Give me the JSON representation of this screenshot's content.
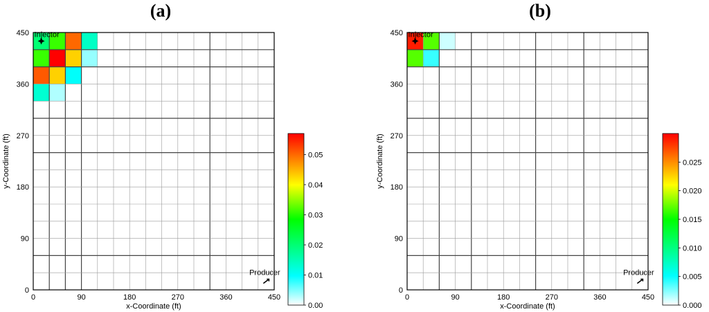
{
  "chart_data": [
    {
      "type": "heatmap",
      "panel_label": "(a)",
      "title": "",
      "xlabel": "x-Coordinate (ft)",
      "ylabel": "y-Coordinate (ft)",
      "xlim": [
        0,
        450
      ],
      "ylim": [
        0,
        450
      ],
      "x_ticks": [
        0,
        90,
        180,
        270,
        360,
        450
      ],
      "y_ticks": [
        0,
        90,
        180,
        270,
        360,
        450
      ],
      "grid_x_edges": [
        0,
        30,
        60,
        90,
        120,
        150,
        180,
        210,
        240,
        270,
        300,
        330,
        360,
        390,
        420,
        450
      ],
      "grid_y_edges": [
        0,
        30,
        60,
        90,
        120,
        150,
        180,
        210,
        240,
        270,
        300,
        330,
        360,
        390,
        420,
        450
      ],
      "heavy_x_lines": [
        30,
        60,
        90,
        330
      ],
      "heavy_y_lines": [
        60,
        240,
        300,
        390,
        420
      ],
      "colorbar": {
        "min": 0,
        "max": 0.057,
        "ticks": [
          0.0,
          0.01,
          0.02,
          0.03,
          0.04,
          0.05
        ],
        "tick_labels": [
          "0.00",
          "0.01",
          "0.02",
          "0.03",
          "0.04",
          "0.05"
        ]
      },
      "cells": [
        {
          "col": 0,
          "row": 14,
          "value": 0.02
        },
        {
          "col": 1,
          "row": 14,
          "value": 0.031
        },
        {
          "col": 2,
          "row": 14,
          "value": 0.05
        },
        {
          "col": 3,
          "row": 14,
          "value": 0.014
        },
        {
          "col": 0,
          "row": 13,
          "value": 0.031
        },
        {
          "col": 1,
          "row": 13,
          "value": 0.057
        },
        {
          "col": 2,
          "row": 13,
          "value": 0.043
        },
        {
          "col": 3,
          "row": 13,
          "value": 0.004
        },
        {
          "col": 0,
          "row": 12,
          "value": 0.051
        },
        {
          "col": 1,
          "row": 12,
          "value": 0.043
        },
        {
          "col": 2,
          "row": 12,
          "value": 0.01
        },
        {
          "col": 0,
          "row": 11,
          "value": 0.013
        },
        {
          "col": 1,
          "row": 11,
          "value": 0.003
        }
      ],
      "injector": {
        "label": "Injector",
        "x": 15,
        "y": 435
      },
      "producer": {
        "label": "Producer",
        "x": 435,
        "y": 15
      }
    },
    {
      "type": "heatmap",
      "panel_label": "(b)",
      "title": "",
      "xlabel": "x-Coordinate (ft)",
      "ylabel": "y-Coordinate (ft)",
      "xlim": [
        0,
        450
      ],
      "ylim": [
        0,
        450
      ],
      "x_ticks": [
        0,
        90,
        180,
        270,
        360,
        450
      ],
      "y_ticks": [
        0,
        90,
        180,
        270,
        360,
        450
      ],
      "grid_x_edges": [
        0,
        30,
        60,
        90,
        120,
        150,
        180,
        210,
        240,
        270,
        300,
        330,
        360,
        390,
        420,
        450
      ],
      "grid_y_edges": [
        0,
        30,
        60,
        90,
        120,
        150,
        180,
        210,
        240,
        270,
        300,
        330,
        360,
        390,
        420,
        450
      ],
      "heavy_x_lines": [
        60,
        120,
        240,
        330
      ],
      "heavy_y_lines": [
        60,
        240,
        300,
        390,
        420
      ],
      "colorbar": {
        "min": 0,
        "max": 0.03,
        "ticks": [
          0.0,
          0.005,
          0.01,
          0.015,
          0.02,
          0.025
        ],
        "tick_labels": [
          "0.000",
          "0.005",
          "0.010",
          "0.015",
          "0.020",
          "0.025"
        ]
      },
      "cells": [
        {
          "col": 0,
          "row": 14,
          "value": 0.029
        },
        {
          "col": 1,
          "row": 14,
          "value": 0.017
        },
        {
          "col": 2,
          "row": 14,
          "value": 0.001
        },
        {
          "col": 0,
          "row": 13,
          "value": 0.017
        },
        {
          "col": 1,
          "row": 13,
          "value": 0.004
        }
      ],
      "injector": {
        "label": "Injector",
        "x": 15,
        "y": 435
      },
      "producer": {
        "label": "Producer",
        "x": 435,
        "y": 15
      }
    }
  ]
}
